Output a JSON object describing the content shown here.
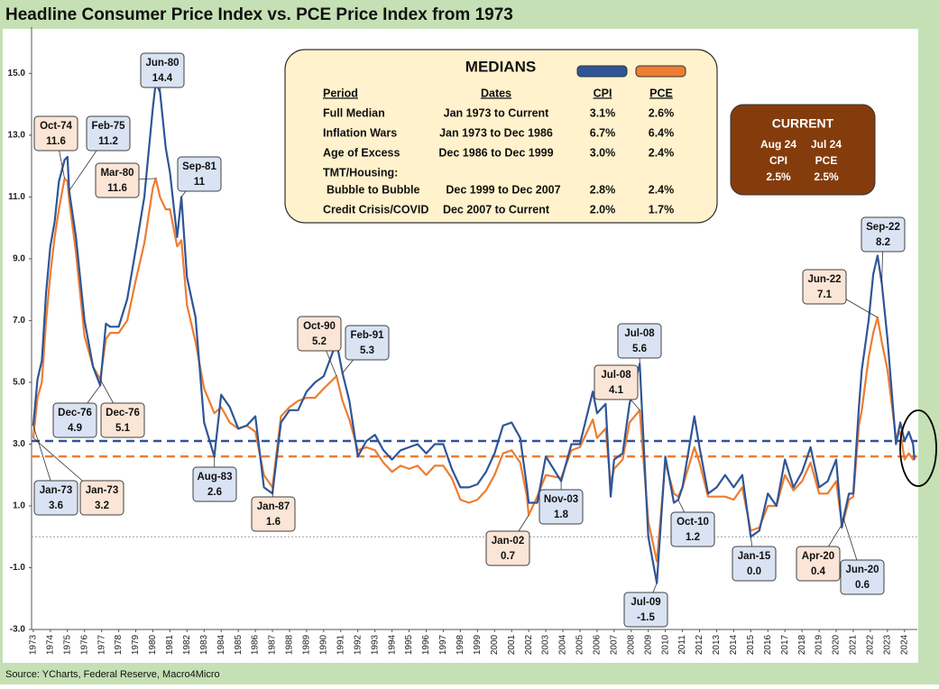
{
  "chart_data": {
    "type": "line",
    "title": "Headline Consumer Price Index vs. PCE Price Index from 1973",
    "source": "Source: YCharts, Federal Reserve, Macro4Micro",
    "xlim": [
      1972.9,
      2024.75
    ],
    "ylim": [
      -3,
      16.5
    ],
    "yticks": [
      {
        "value": -3,
        "label": "-3.0"
      },
      {
        "value": -1,
        "label": "-1.0"
      },
      {
        "value": 1,
        "label": "1.0"
      },
      {
        "value": 3,
        "label": "3.0"
      },
      {
        "value": 5,
        "label": "5.0"
      },
      {
        "value": 7,
        "label": "7.0"
      },
      {
        "value": 9,
        "label": "9.0"
      },
      {
        "value": 11,
        "label": "11.0"
      },
      {
        "value": 13,
        "label": "13.0"
      },
      {
        "value": 15,
        "label": "15.0"
      }
    ],
    "xticks": [
      1973,
      1974,
      1975,
      1976,
      1977,
      1978,
      1979,
      1980,
      1981,
      1982,
      1983,
      1984,
      1985,
      1986,
      1987,
      1988,
      1989,
      1990,
      1991,
      1992,
      1993,
      1994,
      1995,
      1996,
      1997,
      1998,
      1999,
      2000,
      2001,
      2002,
      2003,
      2004,
      2005,
      2006,
      2007,
      2008,
      2009,
      2010,
      2011,
      2012,
      2013,
      2014,
      2015,
      2016,
      2017,
      2018,
      2019,
      2020,
      2021,
      2022,
      2023,
      2024
    ],
    "x": [
      1973.0,
      1973.25,
      1973.5,
      1973.75,
      1974.0,
      1974.25,
      1974.5,
      1974.83,
      1975.0,
      1975.1,
      1975.5,
      1976.0,
      1976.5,
      1976.92,
      1977.25,
      1977.5,
      1978.0,
      1978.5,
      1979.0,
      1979.5,
      1980.0,
      1980.17,
      1980.42,
      1980.75,
      1981.0,
      1981.42,
      1981.67,
      1982.0,
      1982.5,
      1983.0,
      1983.6,
      1984.0,
      1984.5,
      1985.0,
      1985.5,
      1986.0,
      1986.5,
      1987.0,
      1987.5,
      1988.0,
      1988.5,
      1989.0,
      1989.5,
      1990.0,
      1990.75,
      1991.1,
      1991.5,
      1992.0,
      1992.5,
      1993.0,
      1993.5,
      1994.0,
      1994.5,
      1995.0,
      1995.5,
      1996.0,
      1996.5,
      1997.0,
      1997.5,
      1998.0,
      1998.5,
      1999.0,
      1999.5,
      2000.0,
      2000.5,
      2001.0,
      2001.5,
      2001.9,
      2002.0,
      2002.5,
      2003.0,
      2003.9,
      2004.5,
      2005.0,
      2005.75,
      2006.0,
      2006.5,
      2006.8,
      2007.0,
      2007.5,
      2007.9,
      2008.5,
      2008.9,
      2009.0,
      2009.5,
      2010.0,
      2010.5,
      2010.75,
      2011.0,
      2011.7,
      2012.0,
      2012.5,
      2013.0,
      2013.5,
      2014.0,
      2014.5,
      2015.0,
      2015.5,
      2016.0,
      2016.5,
      2017.0,
      2017.5,
      2018.0,
      2018.5,
      2019.0,
      2019.5,
      2020.0,
      2020.33,
      2020.42,
      2020.75,
      2021.0,
      2021.33,
      2021.5,
      2021.9,
      2022.17,
      2022.42,
      2022.67,
      2023.0,
      2023.5,
      2023.75,
      2024.0,
      2024.25,
      2024.5,
      2024.58
    ],
    "series": [
      {
        "name": "CPI",
        "color": "#2f5597",
        "values": [
          3.6,
          5.1,
          5.7,
          7.9,
          9.4,
          10.2,
          11.5,
          12.2,
          12.3,
          11.2,
          9.7,
          7.0,
          5.5,
          4.9,
          6.9,
          6.8,
          6.8,
          7.7,
          9.3,
          11.0,
          13.9,
          14.7,
          14.4,
          12.6,
          11.8,
          9.7,
          11.0,
          8.4,
          7.1,
          3.7,
          2.6,
          4.6,
          4.2,
          3.5,
          3.6,
          3.9,
          1.6,
          1.4,
          3.7,
          4.1,
          4.1,
          4.7,
          5.0,
          5.2,
          6.3,
          5.3,
          4.4,
          2.6,
          3.1,
          3.3,
          2.8,
          2.5,
          2.8,
          2.9,
          3.0,
          2.7,
          3.0,
          3.0,
          2.2,
          1.6,
          1.6,
          1.7,
          2.1,
          2.7,
          3.6,
          3.7,
          3.2,
          1.6,
          1.1,
          1.1,
          2.6,
          1.8,
          3.0,
          3.0,
          4.7,
          4.0,
          4.3,
          1.3,
          2.5,
          2.7,
          4.3,
          5.6,
          1.1,
          0.0,
          -1.5,
          2.6,
          1.1,
          1.2,
          1.6,
          3.9,
          2.9,
          1.4,
          1.6,
          2.0,
          1.6,
          2.0,
          0.0,
          0.2,
          1.4,
          1.0,
          2.5,
          1.6,
          2.1,
          2.9,
          1.6,
          1.8,
          2.5,
          0.3,
          0.6,
          1.4,
          1.4,
          4.2,
          5.4,
          7.0,
          8.5,
          9.1,
          8.2,
          6.4,
          3.0,
          3.7,
          3.1,
          3.4,
          3.0,
          2.5
        ]
      },
      {
        "name": "PCE",
        "color": "#ed7d31",
        "values": [
          3.2,
          4.5,
          5.0,
          7.0,
          8.5,
          9.7,
          10.6,
          11.6,
          11.5,
          10.9,
          9.2,
          6.5,
          5.5,
          5.1,
          6.4,
          6.6,
          6.6,
          7.0,
          8.3,
          9.5,
          11.3,
          11.6,
          11.0,
          10.6,
          10.6,
          9.4,
          9.6,
          7.5,
          6.3,
          4.8,
          4.0,
          4.2,
          3.7,
          3.5,
          3.6,
          3.4,
          2.0,
          1.6,
          3.9,
          4.2,
          4.4,
          4.5,
          4.5,
          4.8,
          5.2,
          4.4,
          3.8,
          2.8,
          2.9,
          2.8,
          2.4,
          2.1,
          2.3,
          2.2,
          2.3,
          2.0,
          2.3,
          2.3,
          1.9,
          1.2,
          1.1,
          1.2,
          1.5,
          2.0,
          2.7,
          2.8,
          2.4,
          1.3,
          0.7,
          1.3,
          2.0,
          1.9,
          2.8,
          2.9,
          3.8,
          3.2,
          3.5,
          1.7,
          2.2,
          2.5,
          3.7,
          4.1,
          1.2,
          0.5,
          -0.8,
          2.4,
          1.4,
          1.3,
          1.6,
          2.9,
          2.4,
          1.3,
          1.3,
          1.3,
          1.2,
          1.6,
          0.2,
          0.3,
          1.0,
          1.0,
          2.0,
          1.5,
          1.8,
          2.4,
          1.4,
          1.4,
          1.8,
          0.4,
          0.5,
          1.2,
          1.3,
          3.6,
          4.1,
          5.8,
          6.6,
          7.1,
          6.3,
          5.4,
          3.2,
          3.4,
          2.5,
          2.7,
          2.5,
          2.5
        ]
      }
    ],
    "reference_lines": [
      {
        "value": 3.1,
        "color": "#2f5597",
        "style": "dashed"
      },
      {
        "value": 2.6,
        "color": "#ed7d31",
        "style": "dashed"
      },
      {
        "value": 0,
        "color": "#9a9a9a",
        "style": "dotted"
      }
    ],
    "annotations": [
      {
        "label": "Oct-74",
        "value": 11.6,
        "series": 1,
        "x": 1974.83
      },
      {
        "label": "Feb-75",
        "value": 11.2,
        "series": 0,
        "x": 1975.1
      },
      {
        "label": "Jun-80",
        "value": 14.4,
        "series": 0,
        "x": 1980.42
      },
      {
        "label": "Mar-80",
        "value": 11.6,
        "series": 1,
        "x": 1980.17
      },
      {
        "label": "Sep-81",
        "value": 11.0,
        "series": 0,
        "x": 1981.67
      },
      {
        "label": "Dec-76",
        "value": 4.9,
        "series": 0,
        "x": 1976.92
      },
      {
        "label": "Dec-76",
        "value": 5.1,
        "series": 1,
        "x": 1976.92
      },
      {
        "label": "Jan-73",
        "value": 3.6,
        "series": 0,
        "x": 1973.0
      },
      {
        "label": "Jan-73",
        "value": 3.2,
        "series": 1,
        "x": 1973.0
      },
      {
        "label": "Aug-83",
        "value": 2.6,
        "series": 0,
        "x": 1983.6
      },
      {
        "label": "Jan-87",
        "value": 1.6,
        "series": 1,
        "x": 1987.0
      },
      {
        "label": "Oct-90",
        "value": 5.2,
        "series": 1,
        "x": 1990.75
      },
      {
        "label": "Feb-91",
        "value": 5.3,
        "series": 0,
        "x": 1991.1
      },
      {
        "label": "Jul-08",
        "value": 5.6,
        "series": 0,
        "x": 2008.5
      },
      {
        "label": "Jul-08",
        "value": 4.1,
        "series": 1,
        "x": 2008.5
      },
      {
        "label": "Jan-02",
        "value": 0.7,
        "series": 1,
        "x": 2002.0
      },
      {
        "label": "Nov-03",
        "value": 1.8,
        "series": 0,
        "x": 2003.9
      },
      {
        "label": "Jul-09",
        "value": -1.5,
        "series": 0,
        "x": 2009.5
      },
      {
        "label": "Oct-10",
        "value": 1.2,
        "series": 0,
        "x": 2010.75
      },
      {
        "label": "Jan-15",
        "value": 0,
        "value_label": "0.0",
        "series": 0,
        "x": 2015.0
      },
      {
        "label": "Apr-20",
        "value": 0.4,
        "series": 1,
        "x": 2020.33
      },
      {
        "label": "Jun-20",
        "value": 0.6,
        "series": 0,
        "x": 2020.42
      },
      {
        "label": "Jun-22",
        "value": 7.1,
        "series": 1,
        "x": 2022.42
      },
      {
        "label": "Sep-22",
        "value": 8.2,
        "series": 0,
        "x": 2022.67
      }
    ],
    "medians": {
      "title": "MEDIANS",
      "headers": [
        "Period",
        "Dates",
        "CPI",
        "PCE"
      ],
      "rows": [
        [
          "Full Median",
          "Jan 1973 to Current",
          "3.1%",
          "2.6%"
        ],
        [
          "Inflation Wars",
          "Jan 1973 to Dec 1986",
          "6.7%",
          "6.4%"
        ],
        [
          "Age of Excess",
          "Dec 1986 to Dec 1999",
          "3.0%",
          "2.4%"
        ],
        [
          "TMT/Housing:"
        ],
        [
          "Bubble to Bubble",
          "Dec 1999 to Dec 2007",
          "2.8%",
          "2.4%"
        ],
        [
          "Credit Crisis/COVID",
          "Dec 2007 to Current",
          "2.0%",
          "1.7%"
        ]
      ]
    },
    "current": {
      "title": "CURRENT",
      "items": [
        {
          "period": "Aug 24",
          "name": "CPI",
          "value": "2.5%"
        },
        {
          "period": "Jul 24",
          "name": "PCE",
          "value": "2.5%"
        }
      ]
    }
  }
}
